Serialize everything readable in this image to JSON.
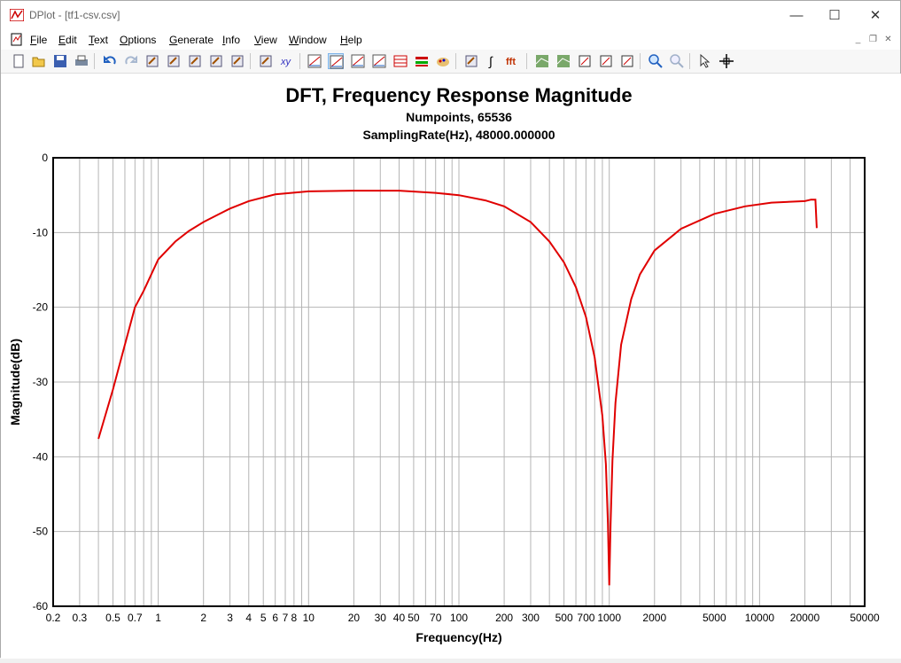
{
  "window": {
    "title": "DPlot - [tf1-csv.csv]",
    "buttons": {
      "minimize": "—",
      "maximize": "☐",
      "close": "✕"
    }
  },
  "menu": [
    {
      "label": "File",
      "u": "F",
      "rest": "ile"
    },
    {
      "label": "Edit",
      "u": "E",
      "rest": "dit"
    },
    {
      "label": "Text",
      "u": "T",
      "rest": "ext"
    },
    {
      "label": "Options",
      "u": "O",
      "rest": "ptions"
    },
    {
      "label": "Generate",
      "u": "G",
      "rest": "enerate"
    },
    {
      "label": "Info",
      "u": "I",
      "rest": "nfo"
    },
    {
      "label": "View",
      "u": "V",
      "rest": "iew"
    },
    {
      "label": "Window",
      "u": "W",
      "rest": "indow"
    },
    {
      "label": "Help",
      "u": "H",
      "rest": "elp"
    }
  ],
  "toolbar": {
    "icons": [
      "new-document-icon",
      "open-folder-icon",
      "save-icon",
      "print-icon",
      "undo-icon",
      "redo-icon",
      "copy-icon",
      "paste-icon",
      "clear-icon",
      "edit-data-icon",
      "edit-table-icon",
      "operate-icon",
      "xy-swap-icon",
      "linear-linear-icon",
      "log-linear-icon",
      "linear-log-icon",
      "log-log-icon",
      "grid-icon",
      "table-icon",
      "palette-icon",
      "scale-icon",
      "integrate-icon",
      "fft-icon",
      "area-icon",
      "contour-icon",
      "zoom-box-icon",
      "red-box-icon",
      "clear-zoom-icon",
      "zoom-in-icon",
      "zoom-out-icon",
      "pointer-icon",
      "crosshair-icon"
    ],
    "fft_label": "fft",
    "integrate_label": "∫"
  },
  "chart_data": {
    "type": "line",
    "title": "DFT, Frequency Response Magnitude",
    "subtitle_1": "Numpoints, 65536",
    "subtitle_2": "SamplingRate(Hz), 48000.000000",
    "xlabel": "Frequency(Hz)",
    "ylabel": "Magnitude(dB)",
    "x_scale": "log",
    "xlim": [
      0.2,
      50000
    ],
    "ylim": [
      -60,
      0
    ],
    "grid": true,
    "x_tick_labels": [
      {
        "v": 0.2,
        "t": "0.2"
      },
      {
        "v": 0.3,
        "t": "0.3"
      },
      {
        "v": 0.5,
        "t": "0.5"
      },
      {
        "v": 0.7,
        "t": "0.7"
      },
      {
        "v": 1,
        "t": "1"
      },
      {
        "v": 2,
        "t": "2"
      },
      {
        "v": 3,
        "t": "3"
      },
      {
        "v": 4,
        "t": "4"
      },
      {
        "v": 5,
        "t": "5"
      },
      {
        "v": 6,
        "t": "6"
      },
      {
        "v": 7,
        "t": "7"
      },
      {
        "v": 8,
        "t": "8"
      },
      {
        "v": 10,
        "t": "10"
      },
      {
        "v": 20,
        "t": "20"
      },
      {
        "v": 30,
        "t": "30"
      },
      {
        "v": 40,
        "t": "40"
      },
      {
        "v": 50,
        "t": "50"
      },
      {
        "v": 70,
        "t": "70"
      },
      {
        "v": 100,
        "t": "100"
      },
      {
        "v": 200,
        "t": "200"
      },
      {
        "v": 300,
        "t": "300"
      },
      {
        "v": 500,
        "t": "500"
      },
      {
        "v": 700,
        "t": "700"
      },
      {
        "v": 1000,
        "t": "1000"
      },
      {
        "v": 2000,
        "t": "2000"
      },
      {
        "v": 5000,
        "t": "5000"
      },
      {
        "v": 10000,
        "t": "10000"
      },
      {
        "v": 20000,
        "t": "20000"
      },
      {
        "v": 50000,
        "t": "50000"
      }
    ],
    "y_ticks": [
      0,
      -10,
      -20,
      -30,
      -40,
      -50,
      -60
    ],
    "line_color": "#e00000",
    "series": [
      {
        "x": [
          0.4,
          0.5,
          0.6,
          0.7,
          0.8,
          1.0,
          1.3,
          1.6,
          2.0,
          2.5,
          3,
          4,
          6,
          10,
          20,
          40,
          70,
          100,
          150,
          200,
          300,
          400,
          500,
          600,
          700,
          800,
          900,
          950,
          980,
          1000,
          1020,
          1050,
          1100,
          1200,
          1400,
          1600,
          2000,
          3000,
          5000,
          8000,
          12000,
          20000,
          22000,
          23500,
          24000
        ],
        "y": [
          -37.6,
          -31.0,
          -25.0,
          -20.0,
          -17.8,
          -13.6,
          -11.2,
          -9.8,
          -8.6,
          -7.6,
          -6.8,
          -5.8,
          -4.9,
          -4.5,
          -4.4,
          -4.4,
          -4.7,
          -5.0,
          -5.7,
          -6.5,
          -8.6,
          -11.2,
          -14.0,
          -17.3,
          -21.3,
          -26.7,
          -34.5,
          -41.0,
          -49.0,
          -57.2,
          -49.0,
          -40.5,
          -32.8,
          -25.0,
          -18.9,
          -15.6,
          -12.4,
          -9.5,
          -7.5,
          -6.5,
          -6.0,
          -5.8,
          -5.6,
          -5.6,
          -9.4
        ]
      }
    ]
  }
}
